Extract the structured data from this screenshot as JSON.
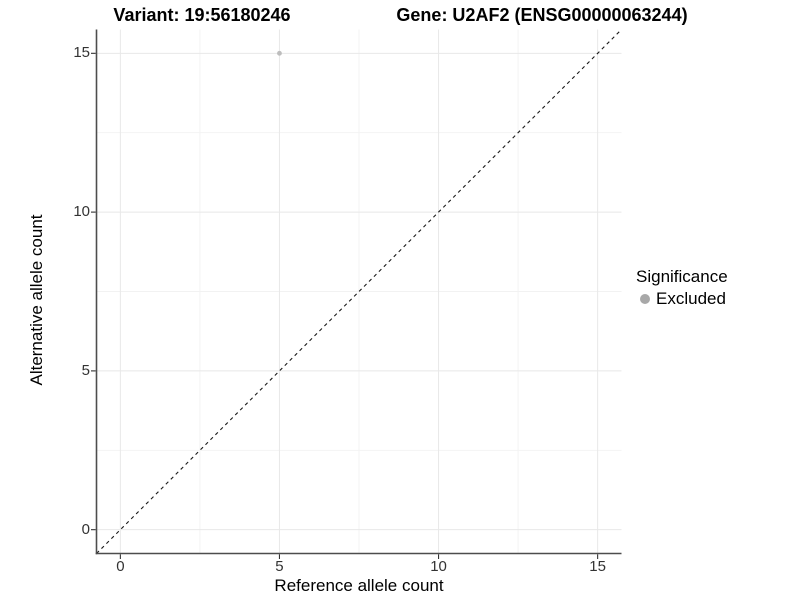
{
  "chart_data": {
    "type": "scatter",
    "title_left": "Variant: 19:56180246",
    "title_right": "Gene: U2AF2 (ENSG00000063244)",
    "xlabel": "Reference allele count",
    "ylabel": "Alternative allele count",
    "xlim": [
      -0.75,
      15.75
    ],
    "ylim": [
      -0.75,
      15.75
    ],
    "x_major_ticks": [
      0,
      5,
      10,
      15
    ],
    "y_major_ticks": [
      0,
      5,
      10,
      15
    ],
    "x_minor_gridlines": [
      2.5,
      7.5,
      12.5
    ],
    "y_minor_gridlines": [
      2.5,
      7.5,
      12.5
    ],
    "grid": true,
    "series": [
      {
        "name": "Excluded",
        "color": "#bdbdbd",
        "points": [
          {
            "x": 5,
            "y": 15
          }
        ]
      }
    ],
    "reference_line": {
      "kind": "abline",
      "slope": 1,
      "intercept": 0,
      "style": "dashed",
      "color": "#1a1a1a"
    },
    "legend": {
      "title": "Significance",
      "position": "right",
      "entries": [
        {
          "label": "Excluded",
          "color": "#a8a8a8"
        }
      ]
    },
    "colors": {
      "grid_major": "#e8e8e8",
      "grid_minor": "#f2f2f2",
      "axis_line": "#4d4d4d",
      "tick_mark": "#333333"
    }
  }
}
